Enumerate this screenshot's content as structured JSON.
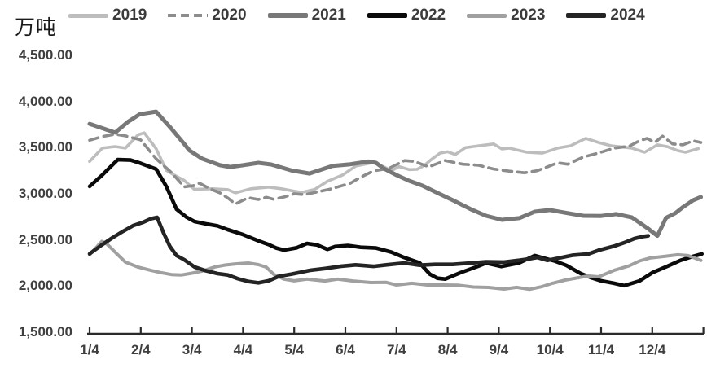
{
  "chart_data": {
    "type": "line",
    "unit": "万吨",
    "legend_position": "top",
    "grid": false,
    "axis_color": "#2b2b2b",
    "text_color": "#3f3f3f",
    "x_axis": {
      "tick_labels": [
        "1/4",
        "2/4",
        "3/4",
        "4/4",
        "5/4",
        "6/4",
        "7/4",
        "8/4",
        "9/4",
        "10/4",
        "11/4",
        "12/4"
      ]
    },
    "y_axis": {
      "min": 1500,
      "max": 4500,
      "ticks": [
        {
          "label": "4,500.00",
          "value": 4500
        },
        {
          "label": "4,000.00",
          "value": 4000
        },
        {
          "label": "3,500.00",
          "value": 3500
        },
        {
          "label": "3,000.00",
          "value": 3000
        },
        {
          "label": "2,500.00",
          "value": 2500
        },
        {
          "label": "2,000.00",
          "value": 2000
        },
        {
          "label": "1,500.00",
          "value": 1500
        }
      ]
    },
    "series": [
      {
        "name": "2019",
        "color": "#bdbdbd",
        "width": 3.6,
        "dashed": false,
        "points": [
          [
            1.0,
            3350
          ],
          [
            1.25,
            3495
          ],
          [
            1.5,
            3512
          ],
          [
            1.7,
            3495
          ],
          [
            1.95,
            3640
          ],
          [
            2.07,
            3660
          ],
          [
            2.3,
            3490
          ],
          [
            2.5,
            3255
          ],
          [
            2.65,
            3205
          ],
          [
            2.85,
            3145
          ],
          [
            3.05,
            3048
          ],
          [
            3.4,
            3055
          ],
          [
            3.7,
            3045
          ],
          [
            3.85,
            3010
          ],
          [
            4.15,
            3055
          ],
          [
            4.5,
            3072
          ],
          [
            4.75,
            3055
          ],
          [
            5.0,
            3028
          ],
          [
            5.15,
            3015
          ],
          [
            5.4,
            3048
          ],
          [
            5.65,
            3135
          ],
          [
            5.95,
            3205
          ],
          [
            6.2,
            3300
          ],
          [
            6.55,
            3340
          ],
          [
            6.75,
            3292
          ],
          [
            6.9,
            3250
          ],
          [
            7.05,
            3295
          ],
          [
            7.25,
            3262
          ],
          [
            7.4,
            3265
          ],
          [
            7.55,
            3310
          ],
          [
            7.7,
            3380
          ],
          [
            7.85,
            3440
          ],
          [
            8.0,
            3455
          ],
          [
            8.15,
            3425
          ],
          [
            8.35,
            3500
          ],
          [
            8.6,
            3520
          ],
          [
            8.9,
            3540
          ],
          [
            9.06,
            3486
          ],
          [
            9.2,
            3495
          ],
          [
            9.55,
            3450
          ],
          [
            9.85,
            3440
          ],
          [
            10.15,
            3495
          ],
          [
            10.4,
            3520
          ],
          [
            10.7,
            3600
          ],
          [
            10.95,
            3556
          ],
          [
            11.2,
            3520
          ],
          [
            11.6,
            3495
          ],
          [
            11.85,
            3450
          ],
          [
            12.1,
            3530
          ],
          [
            12.3,
            3510
          ],
          [
            12.5,
            3468
          ],
          [
            12.65,
            3450
          ],
          [
            12.9,
            3490
          ]
        ]
      },
      {
        "name": "2020",
        "color": "#8c8c8c",
        "width": 3.6,
        "dashed": true,
        "points": [
          [
            1.0,
            3580
          ],
          [
            1.25,
            3620
          ],
          [
            1.5,
            3645
          ],
          [
            1.7,
            3627
          ],
          [
            2.0,
            3583
          ],
          [
            2.3,
            3380
          ],
          [
            2.6,
            3230
          ],
          [
            2.85,
            3075
          ],
          [
            3.05,
            3090
          ],
          [
            3.15,
            3115
          ],
          [
            3.35,
            3055
          ],
          [
            3.55,
            3010
          ],
          [
            3.7,
            2955
          ],
          [
            3.85,
            2890
          ],
          [
            4.1,
            2958
          ],
          [
            4.3,
            2938
          ],
          [
            4.45,
            2962
          ],
          [
            4.6,
            2940
          ],
          [
            4.8,
            2965
          ],
          [
            5.0,
            3000
          ],
          [
            5.2,
            2990
          ],
          [
            5.45,
            3020
          ],
          [
            5.7,
            3050
          ],
          [
            6.1,
            3115
          ],
          [
            6.3,
            3180
          ],
          [
            6.55,
            3248
          ],
          [
            6.85,
            3275
          ],
          [
            7.16,
            3360
          ],
          [
            7.35,
            3350
          ],
          [
            7.63,
            3292
          ],
          [
            7.95,
            3360
          ],
          [
            8.3,
            3320
          ],
          [
            8.6,
            3310
          ],
          [
            8.9,
            3268
          ],
          [
            9.2,
            3245
          ],
          [
            9.5,
            3228
          ],
          [
            9.75,
            3250
          ],
          [
            9.95,
            3292
          ],
          [
            10.15,
            3336
          ],
          [
            10.35,
            3320
          ],
          [
            10.65,
            3398
          ],
          [
            10.95,
            3442
          ],
          [
            11.25,
            3495
          ],
          [
            11.55,
            3515
          ],
          [
            11.75,
            3574
          ],
          [
            11.9,
            3600
          ],
          [
            12.05,
            3555
          ],
          [
            12.2,
            3625
          ],
          [
            12.4,
            3540
          ],
          [
            12.6,
            3530
          ],
          [
            12.8,
            3574
          ],
          [
            12.95,
            3556
          ]
        ]
      },
      {
        "name": "2021",
        "color": "#787878",
        "width": 5,
        "dashed": false,
        "points": [
          [
            1.0,
            3758
          ],
          [
            1.25,
            3710
          ],
          [
            1.5,
            3663
          ],
          [
            1.75,
            3780
          ],
          [
            1.98,
            3862
          ],
          [
            2.3,
            3890
          ],
          [
            2.6,
            3705
          ],
          [
            2.85,
            3540
          ],
          [
            2.95,
            3470
          ],
          [
            3.2,
            3380
          ],
          [
            3.55,
            3310
          ],
          [
            3.75,
            3290
          ],
          [
            4.0,
            3310
          ],
          [
            4.3,
            3335
          ],
          [
            4.55,
            3318
          ],
          [
            4.95,
            3252
          ],
          [
            5.3,
            3220
          ],
          [
            5.75,
            3302
          ],
          [
            6.1,
            3320
          ],
          [
            6.45,
            3350
          ],
          [
            6.6,
            3335
          ],
          [
            6.75,
            3274
          ],
          [
            7.0,
            3203
          ],
          [
            7.25,
            3140
          ],
          [
            7.5,
            3090
          ],
          [
            7.8,
            3010
          ],
          [
            8.1,
            2930
          ],
          [
            8.45,
            2833
          ],
          [
            8.75,
            2762
          ],
          [
            9.06,
            2718
          ],
          [
            9.4,
            2736
          ],
          [
            9.7,
            2806
          ],
          [
            10.0,
            2824
          ],
          [
            10.35,
            2790
          ],
          [
            10.65,
            2762
          ],
          [
            11.0,
            2760
          ],
          [
            11.3,
            2780
          ],
          [
            11.6,
            2744
          ],
          [
            11.9,
            2630
          ],
          [
            12.1,
            2545
          ],
          [
            12.27,
            2740
          ],
          [
            12.45,
            2790
          ],
          [
            12.6,
            2855
          ],
          [
            12.8,
            2930
          ],
          [
            12.95,
            2965
          ]
        ]
      },
      {
        "name": "2022",
        "color": "#0a0a0a",
        "width": 4.6,
        "dashed": false,
        "points": [
          [
            1.0,
            3080
          ],
          [
            1.25,
            3205
          ],
          [
            1.55,
            3370
          ],
          [
            1.8,
            3365
          ],
          [
            2.0,
            3330
          ],
          [
            2.3,
            3268
          ],
          [
            2.5,
            3080
          ],
          [
            2.7,
            2832
          ],
          [
            2.9,
            2745
          ],
          [
            3.05,
            2700
          ],
          [
            3.3,
            2672
          ],
          [
            3.5,
            2652
          ],
          [
            3.7,
            2612
          ],
          [
            4.0,
            2558
          ],
          [
            4.3,
            2490
          ],
          [
            4.5,
            2450
          ],
          [
            4.65,
            2412
          ],
          [
            4.8,
            2390
          ],
          [
            5.05,
            2415
          ],
          [
            5.25,
            2462
          ],
          [
            5.45,
            2445
          ],
          [
            5.65,
            2398
          ],
          [
            5.8,
            2428
          ],
          [
            6.05,
            2440
          ],
          [
            6.3,
            2420
          ],
          [
            6.6,
            2412
          ],
          [
            6.9,
            2368
          ],
          [
            7.15,
            2310
          ],
          [
            7.45,
            2252
          ],
          [
            7.65,
            2130
          ],
          [
            7.8,
            2085
          ],
          [
            7.95,
            2076
          ],
          [
            8.25,
            2145
          ],
          [
            8.6,
            2216
          ],
          [
            8.75,
            2250
          ],
          [
            9.05,
            2212
          ],
          [
            9.4,
            2252
          ],
          [
            9.7,
            2330
          ],
          [
            9.9,
            2300
          ],
          [
            10.1,
            2270
          ],
          [
            10.32,
            2224
          ],
          [
            10.6,
            2136
          ],
          [
            10.8,
            2092
          ],
          [
            11.0,
            2057
          ],
          [
            11.25,
            2030
          ],
          [
            11.45,
            2005
          ],
          [
            11.6,
            2030
          ],
          [
            11.75,
            2055
          ],
          [
            12.0,
            2145
          ],
          [
            12.3,
            2216
          ],
          [
            12.55,
            2278
          ],
          [
            12.8,
            2322
          ],
          [
            12.97,
            2348
          ]
        ]
      },
      {
        "name": "2023",
        "color": "#a0a0a0",
        "width": 4,
        "dashed": false,
        "points": [
          [
            1.0,
            2340
          ],
          [
            1.24,
            2485
          ],
          [
            1.35,
            2450
          ],
          [
            1.55,
            2340
          ],
          [
            1.7,
            2260
          ],
          [
            1.95,
            2205
          ],
          [
            2.2,
            2170
          ],
          [
            2.4,
            2145
          ],
          [
            2.6,
            2125
          ],
          [
            2.8,
            2120
          ],
          [
            3.0,
            2140
          ],
          [
            3.2,
            2163
          ],
          [
            3.45,
            2208
          ],
          [
            3.65,
            2228
          ],
          [
            3.85,
            2240
          ],
          [
            4.1,
            2250
          ],
          [
            4.3,
            2232
          ],
          [
            4.45,
            2206
          ],
          [
            4.6,
            2127
          ],
          [
            4.8,
            2075
          ],
          [
            5.0,
            2057
          ],
          [
            5.25,
            2075
          ],
          [
            5.6,
            2055
          ],
          [
            5.85,
            2075
          ],
          [
            6.15,
            2055
          ],
          [
            6.5,
            2038
          ],
          [
            6.8,
            2040
          ],
          [
            7.0,
            2012
          ],
          [
            7.3,
            2030
          ],
          [
            7.6,
            2012
          ],
          [
            7.9,
            2012
          ],
          [
            8.2,
            2010
          ],
          [
            8.5,
            1990
          ],
          [
            8.8,
            1985
          ],
          [
            9.1,
            1968
          ],
          [
            9.35,
            1986
          ],
          [
            9.6,
            1965
          ],
          [
            9.85,
            1995
          ],
          [
            10.05,
            2030
          ],
          [
            10.3,
            2065
          ],
          [
            10.55,
            2090
          ],
          [
            10.75,
            2110
          ],
          [
            10.95,
            2100
          ],
          [
            11.25,
            2170
          ],
          [
            11.55,
            2220
          ],
          [
            11.75,
            2272
          ],
          [
            11.95,
            2304
          ],
          [
            12.2,
            2320
          ],
          [
            12.5,
            2339
          ],
          [
            12.7,
            2330
          ],
          [
            12.95,
            2278
          ]
        ]
      },
      {
        "name": "2024",
        "color": "#242424",
        "width": 4.6,
        "dashed": false,
        "points": [
          [
            1.0,
            2350
          ],
          [
            1.25,
            2450
          ],
          [
            1.45,
            2525
          ],
          [
            1.65,
            2592
          ],
          [
            1.85,
            2655
          ],
          [
            2.05,
            2692
          ],
          [
            2.2,
            2730
          ],
          [
            2.32,
            2744
          ],
          [
            2.45,
            2570
          ],
          [
            2.57,
            2430
          ],
          [
            2.7,
            2330
          ],
          [
            2.85,
            2285
          ],
          [
            3.05,
            2208
          ],
          [
            3.25,
            2170
          ],
          [
            3.5,
            2135
          ],
          [
            3.7,
            2120
          ],
          [
            3.9,
            2080
          ],
          [
            4.1,
            2050
          ],
          [
            4.3,
            2035
          ],
          [
            4.5,
            2057
          ],
          [
            4.7,
            2105
          ],
          [
            4.95,
            2130
          ],
          [
            5.3,
            2170
          ],
          [
            5.6,
            2190
          ],
          [
            5.9,
            2214
          ],
          [
            6.2,
            2230
          ],
          [
            6.55,
            2214
          ],
          [
            6.8,
            2230
          ],
          [
            7.15,
            2250
          ],
          [
            7.45,
            2226
          ],
          [
            7.75,
            2235
          ],
          [
            8.1,
            2235
          ],
          [
            8.45,
            2250
          ],
          [
            8.75,
            2262
          ],
          [
            9.1,
            2260
          ],
          [
            9.4,
            2280
          ],
          [
            9.6,
            2295
          ],
          [
            9.75,
            2310
          ],
          [
            9.95,
            2278
          ],
          [
            10.15,
            2300
          ],
          [
            10.45,
            2335
          ],
          [
            10.75,
            2348
          ],
          [
            10.95,
            2388
          ],
          [
            11.25,
            2432
          ],
          [
            11.45,
            2470
          ],
          [
            11.65,
            2515
          ],
          [
            11.8,
            2535
          ],
          [
            11.92,
            2545
          ]
        ]
      }
    ]
  }
}
